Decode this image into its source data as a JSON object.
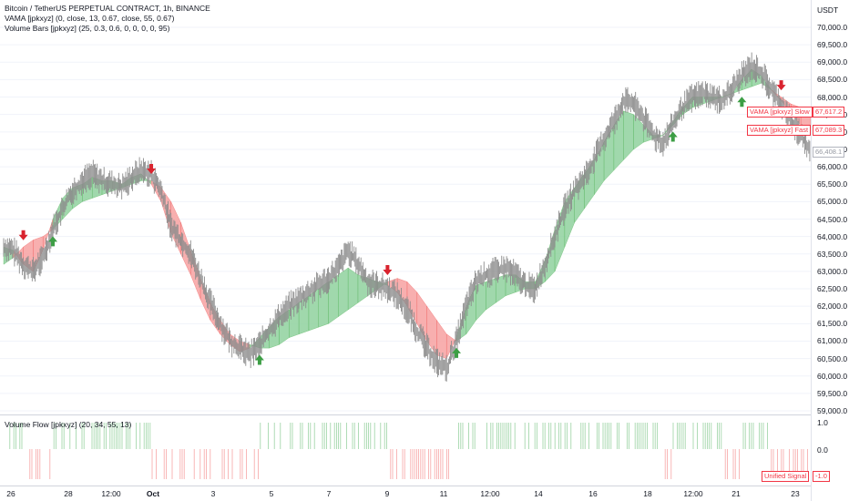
{
  "legend": {
    "symbol": "Bitcoin / TetherUS PERPETUAL CONTRACT, 1h, BINANCE",
    "vama": "VAMA [jpkxyz] (0, close, 13, 0.67, close, 55, 0.67)",
    "volume_bars": "Volume Bars [jpkxyz] (25, 0.3, 0.6, 0, 0, 0, 0, 95)"
  },
  "price_axis": {
    "currency": "USDT",
    "ticks": [
      "70,000.0",
      "69,500.0",
      "69,000.0",
      "68,500.0",
      "68,000.0",
      "67,500.0",
      "67,000.0",
      "66,500.0",
      "66,000.0",
      "65,500.0",
      "65,000.0",
      "64,500.0",
      "64,000.0",
      "63,500.0",
      "63,000.0",
      "62,500.0",
      "62,000.0",
      "61,500.0",
      "61,000.0",
      "60,500.0",
      "60,000.0",
      "59,500.0",
      "59,000.0"
    ]
  },
  "tags": {
    "vama_slow": {
      "label": "VAMA [jpkxyz] Slow",
      "value": "67,617.2"
    },
    "vama_fast": {
      "label": "VAMA [jpkxyz] Fast",
      "value": "67,089.3"
    },
    "last_price": "66,408.1"
  },
  "indicator": {
    "legend": "Volume Flow [jpkxyz] (20, 34, 55, 13)",
    "ticks": [
      "1.0",
      "0.0"
    ],
    "unified_signal_label": "Unified Signal",
    "unified_signal_value": "-1.0"
  },
  "time_axis": {
    "ticks": [
      "26",
      "28",
      "12:00",
      "Oct",
      "3",
      "5",
      "7",
      "9",
      "11",
      "12:00",
      "14",
      "16",
      "18",
      "12:00",
      "21",
      "23"
    ]
  },
  "colors": {
    "bull_fill": "#8fd19e",
    "bear_fill": "#f7a1a1",
    "bull_arrow": "#3d9e45",
    "bear_arrow": "#d9232e",
    "candle": "#8c8c8c"
  },
  "chart_data": {
    "type": "line",
    "y_range": [
      59000,
      70000
    ],
    "close": [
      63700,
      63600,
      63200,
      63000,
      63400,
      64200,
      64800,
      65300,
      65600,
      65800,
      65600,
      65500,
      65400,
      65700,
      65900,
      65800,
      65300,
      64300,
      63900,
      63500,
      62800,
      62100,
      61500,
      61000,
      60800,
      60600,
      60900,
      61300,
      61700,
      62000,
      62200,
      62400,
      62600,
      62800,
      63100,
      63600,
      63200,
      62700,
      62600,
      62500,
      62300,
      61900,
      61300,
      60800,
      60400,
      60200,
      61000,
      62000,
      62700,
      62900,
      63000,
      63100,
      62900,
      62600,
      62500,
      63200,
      64000,
      64800,
      65300,
      65700,
      66200,
      66800,
      67300,
      67900,
      67800,
      67400,
      66900,
      66700,
      67200,
      67700,
      68000,
      68100,
      68000,
      67900,
      68200,
      68600,
      68900,
      68700,
      68200,
      67800,
      67300,
      66900,
      66400
    ],
    "vama_fast": [
      63700,
      63600,
      63200,
      63000,
      63600,
      64500,
      65100,
      65400,
      65500,
      65700,
      65600,
      65600,
      65500,
      65700,
      65800,
      65500,
      65000,
      64100,
      63500,
      62900,
      62200,
      61600,
      61200,
      60900,
      60700,
      60800,
      61100,
      61400,
      61700,
      61900,
      62100,
      62300,
      62500,
      62700,
      62900,
      63100,
      62900,
      62800,
      62700,
      62600,
      62400,
      62000,
      61500,
      61000,
      60600,
      60500,
      61100,
      62000,
      62600,
      62700,
      62800,
      62900,
      62900,
      62700,
      62700,
      63300,
      64200,
      65000,
      65400,
      65800,
      66200,
      66700,
      67200,
      67600,
      67500,
      67200,
      66900,
      66900,
      67300,
      67700,
      68000,
      68000,
      68000,
      68000,
      68100,
      68500,
      68800,
      68600,
      68200,
      67900,
      67500,
      67200,
      67089
    ],
    "vama_slow": [
      63200,
      63400,
      63700,
      63900,
      64000,
      64200,
      64500,
      64800,
      65000,
      65100,
      65200,
      65300,
      65400,
      65500,
      65600,
      65600,
      65400,
      65000,
      64400,
      63600,
      62800,
      62100,
      61600,
      61200,
      61000,
      60900,
      60800,
      60800,
      60900,
      61100,
      61200,
      61300,
      61400,
      61500,
      61700,
      61900,
      62100,
      62300,
      62500,
      62700,
      62800,
      62700,
      62400,
      62000,
      61600,
      61200,
      61000,
      61200,
      61600,
      61900,
      62100,
      62300,
      62400,
      62500,
      62500,
      62700,
      63000,
      63700,
      64400,
      64800,
      65200,
      65600,
      65900,
      66200,
      66500,
      66700,
      66800,
      66900,
      67200,
      67500,
      67700,
      67800,
      67900,
      68000,
      68100,
      68200,
      68300,
      68400,
      68200,
      68000,
      67800,
      67700,
      67617
    ]
  }
}
